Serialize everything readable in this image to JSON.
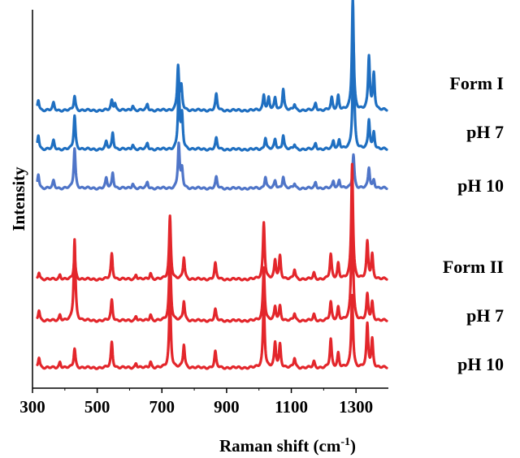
{
  "chart_data": {
    "type": "line",
    "xlabel": "Raman shift (cm",
    "xlabel_sup": "-1",
    "xlabel_close": ")",
    "ylabel": "Intensity",
    "xlim": [
      300,
      1400
    ],
    "x_ticks": [
      300,
      500,
      700,
      900,
      1100,
      1300
    ],
    "x_tick_labels": [
      "300",
      "500",
      "700",
      "900",
      "1100",
      "1300"
    ],
    "grid": false,
    "legend": "none",
    "series": [
      {
        "name": "Form I",
        "group": "Form I",
        "color": "#1f6fc1",
        "baseline": 0.0,
        "peaks": [
          [
            318,
            0.09
          ],
          [
            365,
            0.06
          ],
          [
            430,
            0.12
          ],
          [
            545,
            0.08
          ],
          [
            555,
            0.06
          ],
          [
            610,
            0.04
          ],
          [
            655,
            0.05
          ],
          [
            750,
            0.36
          ],
          [
            760,
            0.18
          ],
          [
            868,
            0.13
          ],
          [
            1015,
            0.13
          ],
          [
            1030,
            0.1
          ],
          [
            1050,
            0.1
          ],
          [
            1075,
            0.18
          ],
          [
            1110,
            0.05
          ],
          [
            1175,
            0.06
          ],
          [
            1225,
            0.1
          ],
          [
            1245,
            0.12
          ],
          [
            1290,
            0.93
          ],
          [
            1340,
            0.44
          ],
          [
            1355,
            0.3
          ]
        ]
      },
      {
        "name": "pH 7",
        "group": "Form I",
        "color": "#1f6fc1",
        "baseline": 0.0,
        "peaks": [
          [
            318,
            0.12
          ],
          [
            365,
            0.07
          ],
          [
            430,
            0.28
          ],
          [
            528,
            0.06
          ],
          [
            548,
            0.14
          ],
          [
            610,
            0.04
          ],
          [
            655,
            0.05
          ],
          [
            752,
            0.5
          ],
          [
            762,
            0.27
          ],
          [
            868,
            0.09
          ],
          [
            1020,
            0.1
          ],
          [
            1050,
            0.08
          ],
          [
            1075,
            0.12
          ],
          [
            1110,
            0.04
          ],
          [
            1175,
            0.05
          ],
          [
            1230,
            0.07
          ],
          [
            1248,
            0.08
          ],
          [
            1292,
            0.88
          ],
          [
            1340,
            0.24
          ],
          [
            1355,
            0.14
          ]
        ]
      },
      {
        "name": "pH 10",
        "group": "Form I",
        "color": "#4f75c8",
        "baseline": 0.0,
        "peaks": [
          [
            318,
            0.12
          ],
          [
            365,
            0.06
          ],
          [
            430,
            0.33
          ],
          [
            528,
            0.08
          ],
          [
            548,
            0.13
          ],
          [
            610,
            0.04
          ],
          [
            655,
            0.05
          ],
          [
            752,
            0.36
          ],
          [
            762,
            0.15
          ],
          [
            868,
            0.09
          ],
          [
            1020,
            0.1
          ],
          [
            1050,
            0.06
          ],
          [
            1075,
            0.1
          ],
          [
            1110,
            0.04
          ],
          [
            1175,
            0.05
          ],
          [
            1230,
            0.06
          ],
          [
            1248,
            0.07
          ],
          [
            1292,
            0.28
          ],
          [
            1340,
            0.17
          ],
          [
            1355,
            0.07
          ]
        ]
      },
      {
        "name": "Form II",
        "group": "Form II",
        "color": "#e3262b",
        "baseline": 0.0,
        "peaks": [
          [
            320,
            0.06
          ],
          [
            385,
            0.04
          ],
          [
            430,
            0.19
          ],
          [
            545,
            0.21
          ],
          [
            620,
            0.04
          ],
          [
            665,
            0.05
          ],
          [
            725,
            0.52
          ],
          [
            768,
            0.18
          ],
          [
            865,
            0.13
          ],
          [
            1015,
            0.47
          ],
          [
            1050,
            0.15
          ],
          [
            1065,
            0.19
          ],
          [
            1110,
            0.08
          ],
          [
            1170,
            0.05
          ],
          [
            1222,
            0.2
          ],
          [
            1245,
            0.13
          ],
          [
            1288,
            0.95
          ],
          [
            1335,
            0.3
          ],
          [
            1350,
            0.2
          ]
        ]
      },
      {
        "name": "pH 7",
        "group": "Form II",
        "color": "#e3262b",
        "baseline": 0.0,
        "peaks": [
          [
            320,
            0.09
          ],
          [
            385,
            0.05
          ],
          [
            430,
            0.67
          ],
          [
            545,
            0.17
          ],
          [
            620,
            0.04
          ],
          [
            665,
            0.05
          ],
          [
            725,
            0.59
          ],
          [
            768,
            0.16
          ],
          [
            865,
            0.09
          ],
          [
            1015,
            0.44
          ],
          [
            1050,
            0.11
          ],
          [
            1065,
            0.12
          ],
          [
            1110,
            0.06
          ],
          [
            1170,
            0.05
          ],
          [
            1222,
            0.15
          ],
          [
            1245,
            0.11
          ],
          [
            1288,
            1.0
          ],
          [
            1335,
            0.21
          ],
          [
            1350,
            0.15
          ]
        ]
      },
      {
        "name": "pH 10",
        "group": "Form II",
        "color": "#e3262b",
        "baseline": 0.0,
        "peaks": [
          [
            320,
            0.09
          ],
          [
            385,
            0.05
          ],
          [
            430,
            0.16
          ],
          [
            545,
            0.21
          ],
          [
            620,
            0.04
          ],
          [
            665,
            0.05
          ],
          [
            725,
            0.6
          ],
          [
            768,
            0.19
          ],
          [
            865,
            0.13
          ],
          [
            1015,
            0.54
          ],
          [
            1050,
            0.2
          ],
          [
            1065,
            0.19
          ],
          [
            1110,
            0.08
          ],
          [
            1170,
            0.05
          ],
          [
            1222,
            0.23
          ],
          [
            1245,
            0.12
          ],
          [
            1288,
            0.6
          ],
          [
            1335,
            0.35
          ],
          [
            1350,
            0.23
          ]
        ]
      }
    ]
  }
}
